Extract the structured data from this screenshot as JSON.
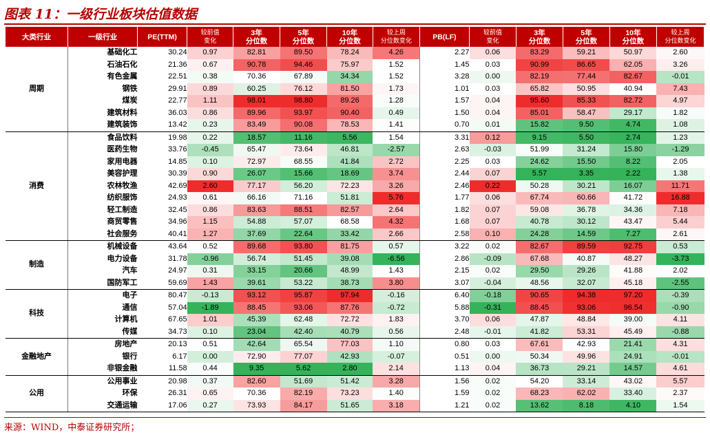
{
  "title": "图表 11：一级行业板块估值数据",
  "footer": "来源：WIND，中泰证券研究所；",
  "headers": [
    "大类行业",
    "一级行业",
    "PE(TTM)",
    "较前值\n变化",
    "3年\n分位数",
    "5年\n分位数",
    "10年\n分位数",
    "较上周\n分位数变化",
    "PB(LF)",
    "较前值\n变化",
    "3年\n分位数",
    "5年\n分位数",
    "10年\n分位数",
    "较上周\n分位数变化"
  ],
  "groups": [
    {
      "name": "周期",
      "rows": [
        {
          "name": "基础化工",
          "pe": "30.24",
          "pe_chg": "0.97",
          "pe3": "82.81",
          "pe5": "89.50",
          "pe10": "78.24",
          "pe_wk": "4.26",
          "pb": "2.27",
          "pb_chg": "0.06",
          "pb3": "83.29",
          "pb5": "59.21",
          "pb10": "50.97",
          "pb_wk": "2.60"
        },
        {
          "name": "石油石化",
          "pe": "21.36",
          "pe_chg": "0.67",
          "pe3": "90.78",
          "pe5": "94.46",
          "pe10": "75.97",
          "pe_wk": "1.52",
          "pb": "1.45",
          "pb_chg": "0.03",
          "pb3": "90.99",
          "pb5": "86.65",
          "pb10": "62.05",
          "pb_wk": "3.26"
        },
        {
          "name": "有色金属",
          "pe": "22.51",
          "pe_chg": "0.38",
          "pe3": "70.36",
          "pe5": "67.89",
          "pe10": "34.34",
          "pe_wk": "1.52",
          "pb": "3.28",
          "pb_chg": "0.00",
          "pb3": "82.19",
          "pb5": "77.44",
          "pb10": "82.67",
          "pb_wk": "-0.01"
        },
        {
          "name": "钢铁",
          "pe": "29.91",
          "pe_chg": "0.89",
          "pe3": "60.25",
          "pe5": "76.12",
          "pe10": "81.50",
          "pe_wk": "1.73",
          "pb": "1.01",
          "pb_chg": "0.03",
          "pb3": "65.82",
          "pb5": "50.95",
          "pb10": "40.94",
          "pb_wk": "7.43"
        },
        {
          "name": "煤炭",
          "pe": "22.77",
          "pe_chg": "1.11",
          "pe3": "98.01",
          "pe5": "98.80",
          "pe10": "89.26",
          "pe_wk": "1.28",
          "pb": "1.57",
          "pb_chg": "0.04",
          "pb3": "95.60",
          "pb5": "85.33",
          "pb10": "82.72",
          "pb_wk": "4.97"
        },
        {
          "name": "建筑材料",
          "pe": "36.03",
          "pe_chg": "0.86",
          "pe3": "89.96",
          "pe5": "93.97",
          "pe10": "90.40",
          "pe_wk": "0.49",
          "pb": "1.50",
          "pb_chg": "0.04",
          "pb3": "85.01",
          "pb5": "58.47",
          "pb10": "29.17",
          "pb_wk": "1.82"
        },
        {
          "name": "建筑装饰",
          "pe": "13.42",
          "pe_chg": "0.23",
          "pe3": "83.49",
          "pe5": "90.08",
          "pe10": "78.53",
          "pe_wk": "1.41",
          "pb": "0.70",
          "pb_chg": "0.01",
          "pb3": "15.82",
          "pb5": "9.50",
          "pb10": "4.74",
          "pb_wk": "1.08"
        }
      ]
    },
    {
      "name": "消费",
      "rows": [
        {
          "name": "食品饮料",
          "pe": "19.98",
          "pe_chg": "0.22",
          "pe3": "18.57",
          "pe5": "11.16",
          "pe10": "5.56",
          "pe_wk": "1.54",
          "pb": "3.31",
          "pb_chg": "0.12",
          "pb3": "9.15",
          "pb5": "5.50",
          "pb10": "2.74",
          "pb_wk": "1.23"
        },
        {
          "name": "医药生物",
          "pe": "33.76",
          "pe_chg": "-0.45",
          "pe3": "65.47",
          "pe5": "73.64",
          "pe10": "46.81",
          "pe_wk": "-2.57",
          "pb": "2.63",
          "pb_chg": "-0.03",
          "pb3": "51.99",
          "pb5": "31.24",
          "pb10": "15.80",
          "pb_wk": "-1.29"
        },
        {
          "name": "家用电器",
          "pe": "14.85",
          "pe_chg": "0.10",
          "pe3": "72.97",
          "pe5": "68.55",
          "pe10": "41.84",
          "pe_wk": "2.72",
          "pb": "2.25",
          "pb_chg": "0.03",
          "pb3": "24.62",
          "pb5": "15.50",
          "pb10": "8.22",
          "pb_wk": "2.05"
        },
        {
          "name": "美容护理",
          "pe": "30.39",
          "pe_chg": "0.90",
          "pe3": "26.07",
          "pe5": "15.66",
          "pe10": "18.69",
          "pe_wk": "3.74",
          "pb": "2.44",
          "pb_chg": "0.07",
          "pb3": "5.57",
          "pb5": "3.35",
          "pb10": "2.22",
          "pb_wk": "1.38"
        },
        {
          "name": "农林牧渔",
          "pe": "42.69",
          "pe_chg": "2.60",
          "pe3": "77.17",
          "pe5": "56.20",
          "pe10": "72.23",
          "pe_wk": "3.26",
          "pb": "2.46",
          "pb_chg": "0.22",
          "pb3": "50.28",
          "pb5": "30.21",
          "pb10": "16.07",
          "pb_wk": "11.71"
        },
        {
          "name": "纺织服饰",
          "pe": "24.93",
          "pe_chg": "0.61",
          "pe3": "66.16",
          "pe5": "71.16",
          "pe10": "51.81",
          "pe_wk": "5.76",
          "pb": "1.77",
          "pb_chg": "0.06",
          "pb3": "67.74",
          "pb5": "60.66",
          "pb10": "41.72",
          "pb_wk": "16.88"
        },
        {
          "name": "轻工制造",
          "pe": "32.45",
          "pe_chg": "0.86",
          "pe3": "83.63",
          "pe5": "88.51",
          "pe10": "82.57",
          "pe_wk": "2.64",
          "pb": "1.82",
          "pb_chg": "0.07",
          "pb3": "59.08",
          "pb5": "36.78",
          "pb10": "34.36",
          "pb_wk": "7.18"
        },
        {
          "name": "商贸零售",
          "pe": "34.96",
          "pe_chg": "1.15",
          "pe3": "54.88",
          "pe5": "57.07",
          "pe10": "68.58",
          "pe_wk": "4.32",
          "pb": "1.68",
          "pb_chg": "0.07",
          "pb3": "40.78",
          "pb5": "30.12",
          "pb10": "43.47",
          "pb_wk": "5.44"
        },
        {
          "name": "社会服务",
          "pe": "40.41",
          "pe_chg": "1.27",
          "pe3": "37.69",
          "pe5": "22.64",
          "pe10": "33.42",
          "pe_wk": "2.66",
          "pb": "2.58",
          "pb_chg": "0.10",
          "pb3": "24.28",
          "pb5": "14.59",
          "pb10": "7.27",
          "pb_wk": "2.61"
        }
      ]
    },
    {
      "name": "制造",
      "rows": [
        {
          "name": "机械设备",
          "pe": "43.64",
          "pe_chg": "0.52",
          "pe3": "89.68",
          "pe5": "93.80",
          "pe10": "81.75",
          "pe_wk": "0.57",
          "pb": "3.22",
          "pb_chg": "0.02",
          "pb3": "82.67",
          "pb5": "89.59",
          "pb10": "92.75",
          "pb_wk": "0.53"
        },
        {
          "name": "电力设备",
          "pe": "31.78",
          "pe_chg": "-0.96",
          "pe3": "56.74",
          "pe5": "51.45",
          "pe10": "39.08",
          "pe_wk": "-6.56",
          "pb": "2.86",
          "pb_chg": "-0.09",
          "pb3": "67.68",
          "pb5": "40.87",
          "pb10": "48.27",
          "pb_wk": "-3.73"
        },
        {
          "name": "汽车",
          "pe": "24.97",
          "pe_chg": "0.31",
          "pe3": "33.15",
          "pe5": "20.66",
          "pe10": "48.99",
          "pe_wk": "1.43",
          "pb": "2.15",
          "pb_chg": "0.02",
          "pb3": "29.50",
          "pb5": "29.26",
          "pb10": "41.88",
          "pb_wk": "2.02"
        },
        {
          "name": "国防军工",
          "pe": "59.69",
          "pe_chg": "1.43",
          "pe3": "39.61",
          "pe5": "53.22",
          "pe10": "38.73",
          "pe_wk": "3.80",
          "pb": "3.07",
          "pb_chg": "-0.04",
          "pb3": "48.56",
          "pb5": "32.07",
          "pb10": "45.18",
          "pb_wk": "-2.55"
        }
      ]
    },
    {
      "name": "科技",
      "rows": [
        {
          "name": "电子",
          "pe": "80.47",
          "pe_chg": "-0.13",
          "pe3": "93.12",
          "pe5": "95.87",
          "pe10": "97.94",
          "pe_wk": "-0.16",
          "pb": "6.40",
          "pb_chg": "-0.18",
          "pb3": "90.65",
          "pb5": "94.38",
          "pb10": "97.20",
          "pb_wk": "-0.39"
        },
        {
          "name": "通信",
          "pe": "57.04",
          "pe_chg": "-1.89",
          "pe3": "88.45",
          "pe5": "93.06",
          "pe10": "87.76",
          "pe_wk": "-0.72",
          "pb": "5.88",
          "pb_chg": "-0.31",
          "pb3": "88.45",
          "pb5": "93.06",
          "pb10": "96.54",
          "pb_wk": "-0.90"
        },
        {
          "name": "计算机",
          "pe": "67.65",
          "pe_chg": "1.01",
          "pe3": "45.39",
          "pe5": "62.48",
          "pe10": "72.72",
          "pe_wk": "1.83",
          "pb": "3.70",
          "pb_chg": "0.06",
          "pb3": "47.87",
          "pb5": "48.84",
          "pb10": "39.00",
          "pb_wk": "4.11"
        },
        {
          "name": "传媒",
          "pe": "34.73",
          "pe_chg": "0.10",
          "pe3": "23.04",
          "pe5": "42.40",
          "pe10": "40.79",
          "pe_wk": "0.56",
          "pb": "2.48",
          "pb_chg": "-0.01",
          "pb3": "41.82",
          "pb5": "53.31",
          "pb10": "45.49",
          "pb_wk": "-0.88"
        }
      ]
    },
    {
      "name": "金融地产",
      "rows": [
        {
          "name": "房地产",
          "pe": "20.13",
          "pe_chg": "0.51",
          "pe3": "42.64",
          "pe5": "65.54",
          "pe10": "77.03",
          "pe_wk": "1.10",
          "pb": "0.80",
          "pb_chg": "0.03",
          "pb3": "67.61",
          "pb5": "42.93",
          "pb10": "21.41",
          "pb_wk": "4.31"
        },
        {
          "name": "银行",
          "pe": "6.17",
          "pe_chg": "0.00",
          "pe3": "72.90",
          "pe5": "77.07",
          "pe10": "42.93",
          "pe_wk": "-0.07",
          "pb": "0.51",
          "pb_chg": "0.00",
          "pb3": "50.34",
          "pb5": "49.96",
          "pb10": "24.91",
          "pb_wk": "-0.01"
        },
        {
          "name": "非银金融",
          "pe": "11.58",
          "pe_chg": "0.44",
          "pe3": "9.35",
          "pe5": "5.62",
          "pe10": "2.80",
          "pe_wk": "2.14",
          "pb": "1.13",
          "pb_chg": "0.04",
          "pb3": "36.73",
          "pb5": "29.21",
          "pb10": "14.57",
          "pb_wk": "4.61"
        }
      ]
    },
    {
      "name": "公用",
      "rows": [
        {
          "name": "公用事业",
          "pe": "20.98",
          "pe_chg": "0.37",
          "pe3": "82.60",
          "pe5": "51.69",
          "pe10": "51.42",
          "pe_wk": "3.28",
          "pb": "1.56",
          "pb_chg": "0.02",
          "pb3": "54.20",
          "pb5": "33.14",
          "pb10": "43.02",
          "pb_wk": "5.57"
        },
        {
          "name": "环保",
          "pe": "26.31",
          "pe_chg": "0.65",
          "pe3": "70.36",
          "pe5": "82.19",
          "pe10": "73.23",
          "pe_wk": "1.40",
          "pb": "1.59",
          "pb_chg": "0.02",
          "pb3": "68.23",
          "pb5": "62.02",
          "pb10": "33.40",
          "pb_wk": "2.37"
        },
        {
          "name": "交通运输",
          "pe": "17.06",
          "pe_chg": "0.27",
          "pe3": "73.93",
          "pe5": "84.17",
          "pe10": "51.65",
          "pe_wk": "3.18",
          "pb": "1.21",
          "pb_chg": "0.02",
          "pb3": "13.62",
          "pb5": "8.18",
          "pb10": "4.10",
          "pb_wk": "1.54"
        }
      ]
    }
  ],
  "colors": {
    "header_bg": "#c00000",
    "title": "#b50000",
    "high": "#ef2c2c",
    "mid": "#ffffff",
    "low": "#35b35a"
  }
}
